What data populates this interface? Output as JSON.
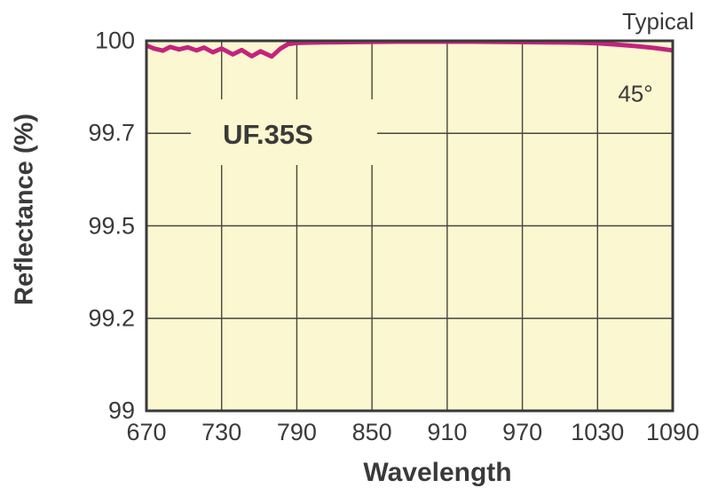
{
  "chart_data": {
    "type": "line",
    "xlabel": "Wavelength",
    "ylabel": "Reflectance (%)",
    "annotations": {
      "typical": "Typical",
      "angle": "45°",
      "product": "UF.35S"
    },
    "x_tick_labels": [
      "670",
      "730",
      "790",
      "850",
      "910",
      "970",
      "1030",
      "1090"
    ],
    "x_tick_values": [
      670,
      730,
      790,
      850,
      910,
      970,
      1030,
      1090
    ],
    "y_tick_labels": [
      "100",
      "99.7",
      "99.5",
      "99.2",
      "99"
    ],
    "y_tick_values": [
      100,
      99.7,
      99.5,
      99.2,
      99
    ],
    "xlim": [
      670,
      1090
    ],
    "ylim": [
      99,
      100
    ],
    "grid": true,
    "legend_position": "none",
    "series": [
      {
        "name": "UF.35S",
        "color": "#C4237E",
        "x": [
          670,
          676,
          683,
          689,
          696,
          703,
          710,
          716,
          723,
          730,
          739,
          746,
          754,
          761,
          770,
          777,
          783,
          790,
          810,
          840,
          870,
          900,
          930,
          960,
          990,
          1015,
          1030,
          1045,
          1060,
          1075,
          1090
        ],
        "y": [
          99.985,
          99.975,
          99.968,
          99.98,
          99.972,
          99.979,
          99.969,
          99.978,
          99.963,
          99.975,
          99.956,
          99.97,
          99.95,
          99.966,
          99.949,
          99.975,
          99.989,
          99.993,
          99.995,
          99.996,
          99.997,
          99.997,
          99.997,
          99.996,
          99.995,
          99.994,
          99.992,
          99.988,
          99.983,
          99.977,
          99.969
        ]
      }
    ],
    "colors": {
      "background": "#FFFFFF",
      "plot_bg": "#FBF7D0",
      "grid": "#45453F",
      "axis": "#39393B",
      "line": "#C4237E",
      "text": "#3A3A3A"
    }
  }
}
